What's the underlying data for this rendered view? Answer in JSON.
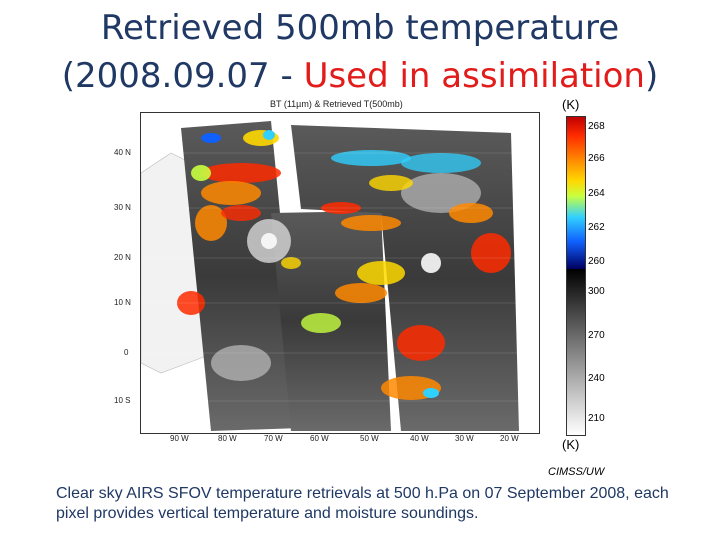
{
  "title": {
    "line1": "Retrieved 500mb temperature",
    "line2_prefix": "(2008.09.07 - ",
    "line2_highlight": "Used in assimilation",
    "line2_suffix": ")"
  },
  "map": {
    "title": "BT (11µm) & Retrieved T(500mb)",
    "lat_ticks": [
      "40 N",
      "30 N",
      "20 N",
      "10 N",
      "0",
      "10 S"
    ],
    "lon_ticks": [
      "90 W",
      "80 W",
      "70 W",
      "60 W",
      "50 W",
      "40 W",
      "30 W",
      "20 W"
    ]
  },
  "colorbar": {
    "unit_top": "(K)",
    "unit_bottom": "(K)",
    "temp_ticks": [
      "268",
      "266",
      "264",
      "262",
      "260"
    ],
    "bt_ticks": [
      "300",
      "270",
      "240",
      "210"
    ],
    "colors": {
      "hot": "#c00000",
      "mid": "#ffd800",
      "cold": "#1060ff"
    }
  },
  "credit": "CIMSS/UW",
  "caption": "Clear sky AIRS SFOV temperature retrievals at 500 h.Pa on 07 September 2008, each pixel provides vertical temperature and moisture soundings.",
  "colors": {
    "title": "#1f3864",
    "highlight": "#e21b1b"
  }
}
